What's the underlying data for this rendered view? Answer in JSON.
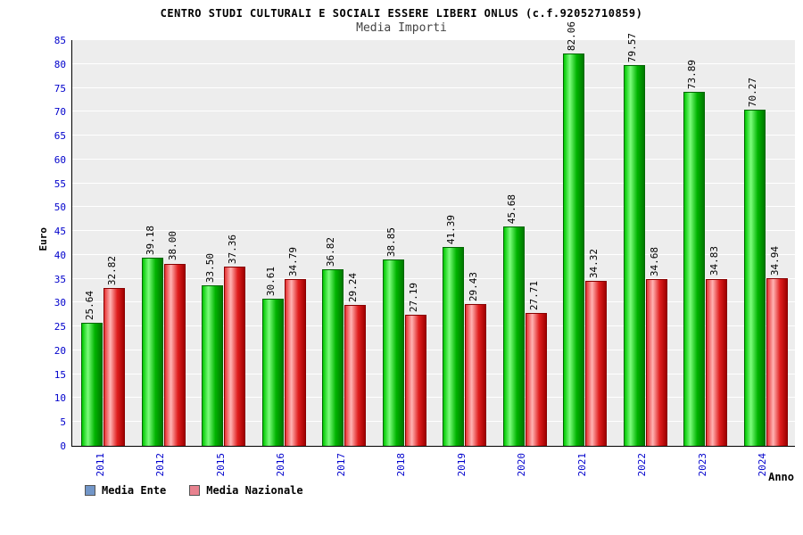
{
  "header": {
    "title": "CENTRO STUDI CULTURALI E SOCIALI ESSERE LIBERI ONLUS (c.f.92052710859)",
    "subtitle": "Media Importi"
  },
  "axes": {
    "ylabel": "Euro",
    "xlabel": "Anno"
  },
  "colors": {
    "axis_text": "#0000cc",
    "plot_background": "#ededed",
    "gridline": "#ffffff",
    "bar_green": "#00c800",
    "bar_red": "#e01f1f",
    "legend_media_ente": "#7296c8",
    "legend_media_nazionale": "#e8828f"
  },
  "chart_data": {
    "type": "bar",
    "title": "CENTRO STUDI CULTURALI E SOCIALI ESSERE LIBERI ONLUS (c.f.92052710859)",
    "subtitle": "Media Importi",
    "xlabel": "Anno",
    "ylabel": "Euro",
    "ylim": [
      0,
      85
    ],
    "yticks": [
      0,
      5,
      10,
      15,
      20,
      25,
      30,
      35,
      40,
      45,
      50,
      55,
      60,
      65,
      70,
      75,
      80,
      85
    ],
    "grid": true,
    "legend_position": "bottom-left",
    "categories": [
      "2011",
      "2012",
      "2015",
      "2016",
      "2017",
      "2018",
      "2019",
      "2020",
      "2021",
      "2022",
      "2023",
      "2024"
    ],
    "series": [
      {
        "name": "Media Ente",
        "legend_color": "#7296c8",
        "values": [
          25.64,
          39.18,
          33.5,
          30.61,
          36.82,
          38.85,
          41.39,
          45.68,
          82.06,
          79.57,
          73.89,
          70.27
        ]
      },
      {
        "name": "Media Nazionale",
        "legend_color": "#e8828f",
        "values": [
          32.82,
          38.0,
          37.36,
          34.79,
          29.24,
          27.19,
          29.43,
          27.71,
          34.32,
          34.68,
          34.83,
          34.94
        ]
      }
    ]
  }
}
